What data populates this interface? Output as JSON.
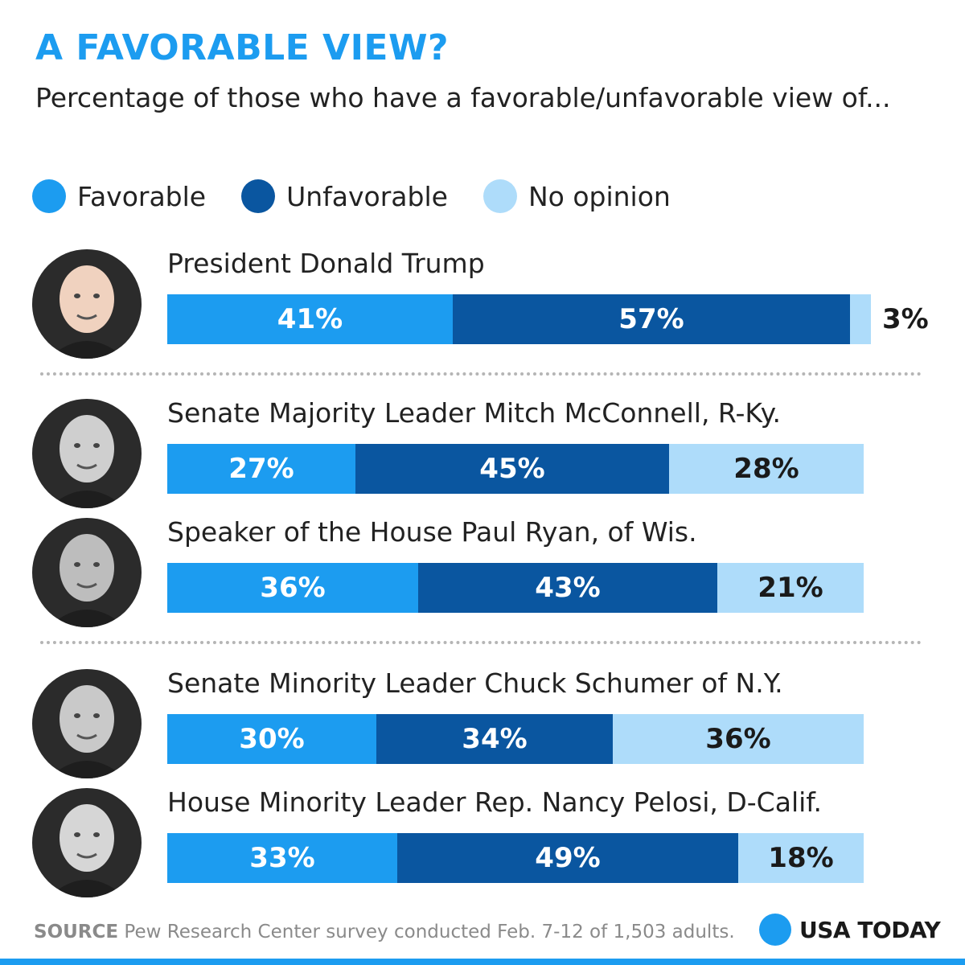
{
  "title": "A FAVORABLE VIEW?",
  "subtitle": "Percentage of those who have a favorable/unfavorable view of...",
  "colors": {
    "favorable": "#1c9cf0",
    "unfavorable": "#0a56a0",
    "no_opinion": "#aedcfa"
  },
  "legend": [
    {
      "label": "Favorable",
      "color": "#1c9cf0"
    },
    {
      "label": "Unfavorable",
      "color": "#0a56a0"
    },
    {
      "label": "No opinion",
      "color": "#aedcfa"
    }
  ],
  "chart_data": {
    "type": "bar",
    "orientation": "horizontal",
    "stacked": true,
    "title": "A FAVORABLE VIEW?",
    "subtitle": "Percentage of those who have a favorable/unfavorable view of...",
    "unit": "%",
    "categories": [
      "President Donald Trump",
      "Senate Majority Leader Mitch McConnell, R-Ky.",
      "Speaker of the House Paul Ryan, of Wis.",
      "Senate Minority Leader Chuck Schumer of N.Y.",
      "House Minority Leader Rep. Nancy Pelosi, D-Calif."
    ],
    "series": [
      {
        "name": "Favorable",
        "values": [
          41,
          27,
          36,
          30,
          33
        ]
      },
      {
        "name": "Unfavorable",
        "values": [
          57,
          45,
          43,
          34,
          49
        ]
      },
      {
        "name": "No opinion",
        "values": [
          3,
          28,
          21,
          36,
          18
        ]
      }
    ],
    "labels": [
      [
        "41%",
        "57%",
        "3%"
      ],
      [
        "27%",
        "45%",
        "28%"
      ],
      [
        "36%",
        "43%",
        "21%"
      ],
      [
        "30%",
        "34%",
        "36%"
      ],
      [
        "33%",
        "49%",
        "18%"
      ]
    ]
  },
  "people": [
    {
      "name": "President Donald Trump",
      "photo": "donald-trump-photo"
    },
    {
      "name": "Senate Majority Leader Mitch McConnell, R-Ky.",
      "photo": "mitch-mcconnell-photo"
    },
    {
      "name": "Speaker of the House Paul Ryan, of Wis.",
      "photo": "paul-ryan-photo"
    },
    {
      "name": "Senate Minority Leader Chuck Schumer of N.Y.",
      "photo": "chuck-schumer-photo"
    },
    {
      "name": "House Minority Leader Rep. Nancy Pelosi, D-Calif.",
      "photo": "nancy-pelosi-photo"
    }
  ],
  "footer": {
    "source_label": "SOURCE",
    "source_text": "Pew Research Center survey conducted Feb. 7-12 of 1,503 adults."
  },
  "brand": {
    "name": "USA TODAY",
    "icon": "usa-today-dot-icon"
  }
}
